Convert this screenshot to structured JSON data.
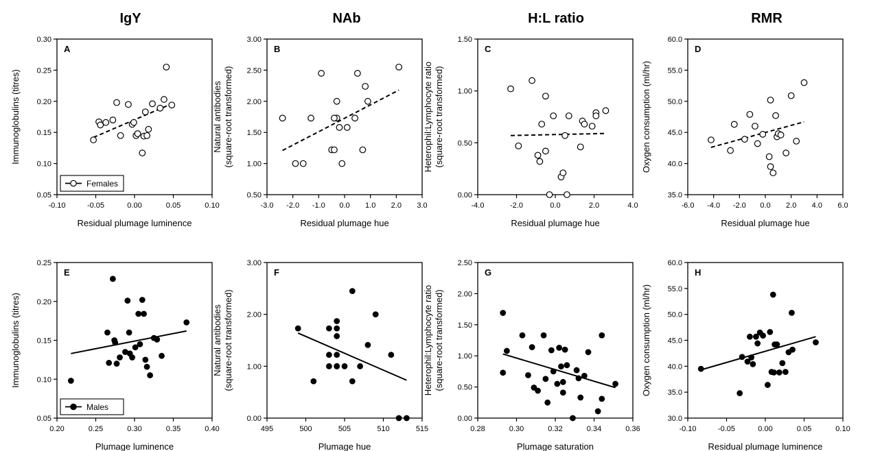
{
  "column_titles": [
    "IgY",
    "NAb",
    "H:L ratio",
    "RMR"
  ],
  "chart_data": [
    {
      "type": "scatter",
      "panel": "A",
      "column": "IgY",
      "group": "Females",
      "marker": "open",
      "xlabel": "Residual plumage luminence",
      "ylabel": "Immunoglobulins (titres)",
      "xlim": [
        -0.1,
        0.1
      ],
      "ylim": [
        0.05,
        0.3
      ],
      "xticks": [
        "-0.10",
        "-0.05",
        "0.00",
        "0.05",
        "0.10"
      ],
      "yticks": [
        "0.05",
        "0.10",
        "0.15",
        "0.20",
        "0.25",
        "0.30"
      ],
      "x": [
        -0.053,
        -0.046,
        -0.044,
        -0.037,
        -0.028,
        -0.023,
        -0.018,
        -0.008,
        -0.003,
        -0.001,
        0.002,
        0.004,
        0.01,
        0.012,
        0.014,
        0.016,
        0.018,
        0.023,
        0.033,
        0.038,
        0.041,
        0.048
      ],
      "y": [
        0.138,
        0.167,
        0.162,
        0.166,
        0.17,
        0.198,
        0.145,
        0.195,
        0.163,
        0.166,
        0.145,
        0.148,
        0.117,
        0.144,
        0.183,
        0.145,
        0.155,
        0.196,
        0.189,
        0.203,
        0.255,
        0.194
      ],
      "trend": {
        "style": "dashed",
        "x": [
          -0.053,
          0.048
        ],
        "y": [
          0.142,
          0.196
        ]
      },
      "legend": {
        "label": "Females",
        "placement": "bottom-left"
      }
    },
    {
      "type": "scatter",
      "panel": "B",
      "column": "NAb",
      "group": "Females",
      "marker": "open",
      "xlabel": "Residual plumage hue",
      "ylabel": "Natural antibodies\n(square-root transformed)",
      "xlim": [
        -3.0,
        3.0
      ],
      "ylim": [
        0.5,
        3.0
      ],
      "xticks": [
        "-3.0",
        "-2.0",
        "-1.0",
        "0.0",
        "1.0",
        "2.0",
        "3.0"
      ],
      "yticks": [
        "0.50",
        "1.00",
        "1.50",
        "2.00",
        "2.50",
        "3.00"
      ],
      "x": [
        -2.4,
        -1.9,
        -1.6,
        -1.3,
        -0.9,
        -0.5,
        -0.4,
        -0.3,
        -0.3,
        -0.4,
        -0.2,
        -0.1,
        0.1,
        0.4,
        0.5,
        0.7,
        0.8,
        0.9,
        2.1
      ],
      "y": [
        1.73,
        1.0,
        1.0,
        1.73,
        2.45,
        1.22,
        1.22,
        2.0,
        1.73,
        1.73,
        1.58,
        1.0,
        1.58,
        1.73,
        2.45,
        1.22,
        2.24,
        2.0,
        2.55
      ],
      "trend": {
        "style": "dashed",
        "x": [
          -2.4,
          2.1
        ],
        "y": [
          1.21,
          2.18
        ]
      }
    },
    {
      "type": "scatter",
      "panel": "C",
      "column": "H:L ratio",
      "group": "Females",
      "marker": "open",
      "xlabel": "Residual plumage hue",
      "ylabel": "Heterophil:Lymphocyte ratio\n(square-root transformed)",
      "xlim": [
        -4.0,
        4.0
      ],
      "ylim": [
        0.0,
        1.5
      ],
      "xticks": [
        "-4.0",
        "-2.0",
        "0.0",
        "2.0",
        "4.0"
      ],
      "yticks": [
        "0.00",
        "0.50",
        "1.00",
        "1.50"
      ],
      "x": [
        -2.3,
        -1.9,
        -1.2,
        -0.9,
        -0.8,
        -0.7,
        -0.5,
        -0.5,
        -0.3,
        -0.1,
        0.3,
        0.4,
        0.5,
        0.6,
        0.7,
        1.3,
        1.4,
        1.5,
        1.9,
        2.1,
        2.1,
        2.6
      ],
      "y": [
        1.02,
        0.47,
        1.1,
        0.38,
        0.32,
        0.68,
        0.95,
        0.42,
        0.0,
        0.76,
        0.17,
        0.21,
        0.57,
        0.0,
        0.76,
        0.46,
        0.71,
        0.68,
        0.66,
        0.79,
        0.76,
        0.81
      ],
      "trend": {
        "style": "dashed",
        "x": [
          -2.3,
          2.6
        ],
        "y": [
          0.57,
          0.59
        ]
      }
    },
    {
      "type": "scatter",
      "panel": "D",
      "column": "RMR",
      "group": "Females",
      "marker": "open",
      "xlabel": "Residual plumage hue",
      "ylabel": "Oxygen consumption (ml/hr)",
      "xlim": [
        -6.0,
        6.0
      ],
      "ylim": [
        35.0,
        60.0
      ],
      "xticks": [
        "-6.0",
        "-4.0",
        "-2.0",
        "0.0",
        "2.0",
        "4.0",
        "6.0"
      ],
      "yticks": [
        "35.0",
        "40.0",
        "45.0",
        "50.0",
        "55.0",
        "60.0"
      ],
      "x": [
        -4.2,
        -2.7,
        -2.4,
        -1.6,
        -1.2,
        -0.8,
        -0.6,
        -0.2,
        0.3,
        0.4,
        0.4,
        0.6,
        0.8,
        0.9,
        1.0,
        1.2,
        1.6,
        2.0,
        2.4,
        3.0
      ],
      "y": [
        43.8,
        42.1,
        46.3,
        43.9,
        47.9,
        46.0,
        43.2,
        44.7,
        41.1,
        39.5,
        50.2,
        38.5,
        47.7,
        44.3,
        44.8,
        44.6,
        41.7,
        50.9,
        43.6,
        53.0
      ],
      "trend": {
        "style": "dashed",
        "x": [
          -4.2,
          3.0
        ],
        "y": [
          42.6,
          46.7
        ]
      }
    },
    {
      "type": "scatter",
      "panel": "E",
      "column": "IgY",
      "group": "Males",
      "marker": "filled",
      "xlabel": "Plumage luminence",
      "ylabel": "Immunoglobulins (titres)",
      "xlim": [
        0.2,
        0.4
      ],
      "ylim": [
        0.05,
        0.25
      ],
      "xticks": [
        "0.20",
        "0.25",
        "0.30",
        "0.35",
        "0.40"
      ],
      "yticks": [
        "0.05",
        "0.10",
        "0.15",
        "0.20",
        "0.25"
      ],
      "x": [
        0.218,
        0.265,
        0.267,
        0.272,
        0.274,
        0.275,
        0.277,
        0.281,
        0.288,
        0.291,
        0.293,
        0.294,
        0.297,
        0.301,
        0.305,
        0.307,
        0.31,
        0.312,
        0.314,
        0.316,
        0.32,
        0.325,
        0.329,
        0.335,
        0.367
      ],
      "y": [
        0.098,
        0.16,
        0.121,
        0.229,
        0.15,
        0.147,
        0.12,
        0.128,
        0.135,
        0.201,
        0.16,
        0.133,
        0.128,
        0.141,
        0.184,
        0.145,
        0.202,
        0.184,
        0.125,
        0.116,
        0.105,
        0.153,
        0.151,
        0.13,
        0.173
      ],
      "trend": {
        "style": "solid",
        "x": [
          0.218,
          0.367
        ],
        "y": [
          0.133,
          0.162
        ]
      },
      "legend": {
        "label": "Males",
        "placement": "bottom-left"
      }
    },
    {
      "type": "scatter",
      "panel": "F",
      "column": "NAb",
      "group": "Males",
      "marker": "filled",
      "xlabel": "Plumage hue",
      "ylabel": "Natural antibodies\n(square-root transformed)",
      "xlim": [
        495,
        515
      ],
      "ylim": [
        0.0,
        3.0
      ],
      "xticks": [
        "495",
        "500",
        "505",
        "510",
        "515"
      ],
      "yticks": [
        "0.00",
        "1.00",
        "2.00",
        "3.00"
      ],
      "x": [
        499,
        501,
        503,
        503,
        503,
        504,
        504,
        504,
        504,
        504,
        504,
        505,
        506,
        506,
        507,
        508,
        509,
        511,
        512,
        513
      ],
      "y": [
        1.73,
        0.71,
        1.73,
        1.22,
        1.0,
        1.87,
        1.73,
        1.58,
        1.22,
        1.0,
        1.0,
        1.0,
        2.45,
        0.71,
        1.0,
        1.41,
        2.0,
        1.22,
        0.0,
        0.0
      ],
      "trend": {
        "style": "solid",
        "x": [
          499,
          513
        ],
        "y": [
          1.64,
          0.73
        ]
      }
    },
    {
      "type": "scatter",
      "panel": "G",
      "column": "H:L ratio",
      "group": "Males",
      "marker": "filled",
      "xlabel": "Plumage saturation",
      "ylabel": "Heterophil:Lymphocyte ratio\n(square-root transformed)",
      "xlim": [
        0.28,
        0.36
      ],
      "ylim": [
        0.0,
        2.5
      ],
      "xticks": [
        "0.28",
        "0.30",
        "0.32",
        "0.34",
        "0.36"
      ],
      "yticks": [
        "0.00",
        "0.50",
        "1.00",
        "1.50",
        "2.00",
        "2.50"
      ],
      "x": [
        0.293,
        0.293,
        0.295,
        0.303,
        0.306,
        0.308,
        0.309,
        0.311,
        0.314,
        0.315,
        0.316,
        0.318,
        0.319,
        0.321,
        0.322,
        0.323,
        0.324,
        0.324,
        0.325,
        0.326,
        0.329,
        0.331,
        0.332,
        0.333,
        0.335,
        0.337,
        0.342,
        0.344,
        0.344,
        0.351
      ],
      "y": [
        1.69,
        0.73,
        1.08,
        1.33,
        0.69,
        1.14,
        0.49,
        0.44,
        1.33,
        0.63,
        0.25,
        1.09,
        0.75,
        0.55,
        1.13,
        0.83,
        0.58,
        0.41,
        1.1,
        0.85,
        0.0,
        0.77,
        0.64,
        0.33,
        0.68,
        1.06,
        0.11,
        1.33,
        0.31,
        0.55
      ],
      "trend": {
        "style": "solid",
        "x": [
          0.293,
          0.351
        ],
        "y": [
          1.03,
          0.49
        ]
      }
    },
    {
      "type": "scatter",
      "panel": "H",
      "column": "RMR",
      "group": "Males",
      "marker": "filled",
      "xlabel": "Residual plumage luminence",
      "ylabel": "Oxygen consumption (ml/hr)",
      "xlim": [
        -0.1,
        0.1
      ],
      "ylim": [
        30.0,
        60.0
      ],
      "xticks": [
        "-0.10",
        "-0.05",
        "0.00",
        "0.05",
        "0.10"
      ],
      "yticks": [
        "30.0",
        "35.0",
        "40.0",
        "45.0",
        "50.0",
        "55.0",
        "60.0"
      ],
      "x": [
        -0.083,
        -0.033,
        -0.03,
        -0.023,
        -0.02,
        -0.018,
        -0.016,
        -0.012,
        -0.01,
        -0.007,
        -0.003,
        0.003,
        0.006,
        0.008,
        0.01,
        0.011,
        0.012,
        0.015,
        0.018,
        0.022,
        0.026,
        0.03,
        0.034,
        0.035,
        0.065
      ],
      "y": [
        39.5,
        34.8,
        41.8,
        40.9,
        45.7,
        41.7,
        40.4,
        45.7,
        44.4,
        46.5,
        45.9,
        36.4,
        46.6,
        38.9,
        53.8,
        38.8,
        44.2,
        44.2,
        38.8,
        40.6,
        38.9,
        42.7,
        50.3,
        43.2,
        44.6
      ],
      "trend": {
        "style": "solid",
        "x": [
          -0.083,
          0.065
        ],
        "y": [
          39.3,
          45.7
        ]
      }
    }
  ]
}
